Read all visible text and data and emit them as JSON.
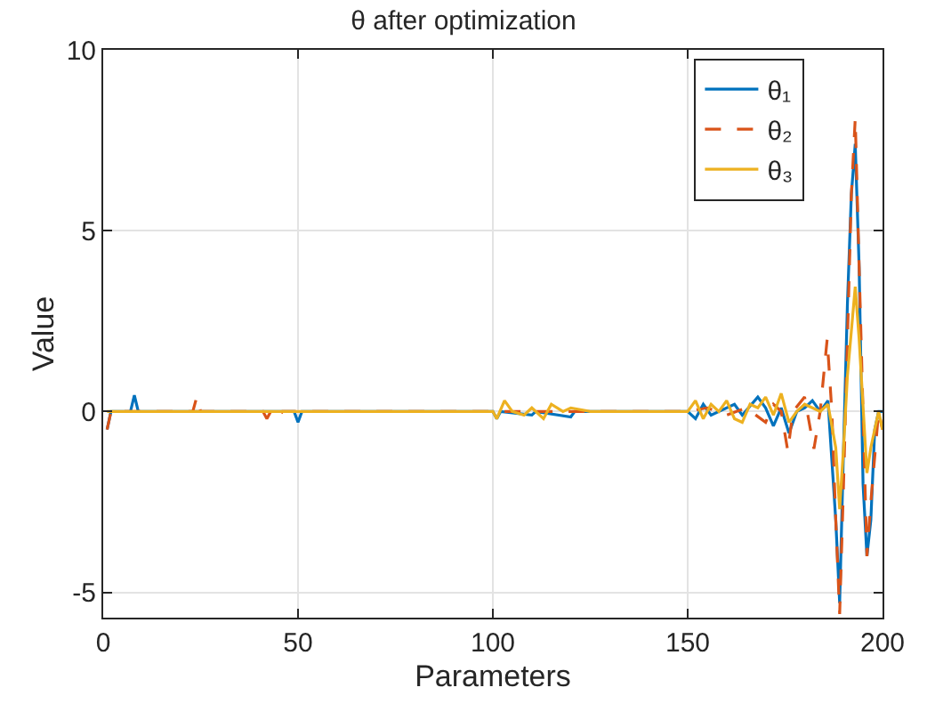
{
  "chart_data": {
    "type": "line",
    "title": "θ after optimization",
    "xlabel": "Parameters",
    "ylabel": "Value",
    "xlim": [
      0,
      200
    ],
    "xticks": [
      0,
      50,
      100,
      150,
      200
    ],
    "ylim": [
      -5.7,
      10
    ],
    "yticks": [
      -5,
      0,
      5,
      10
    ],
    "grid": true,
    "legend": "top right",
    "marker": "none",
    "series": [
      {
        "name": "θ₁",
        "color": "#0072bd",
        "line_style": "solid",
        "x": [
          1,
          2,
          7,
          8,
          9,
          49,
          50,
          51,
          100,
          101,
          102,
          110,
          111,
          120,
          121,
          150,
          152,
          154,
          156,
          158,
          162,
          164,
          168,
          170,
          172,
          174,
          176,
          178,
          180,
          182,
          184,
          186,
          188,
          189,
          190,
          191,
          192,
          193,
          194,
          195,
          196,
          197,
          198,
          199,
          200
        ],
        "values": [
          -0.5,
          0,
          0,
          0.45,
          0,
          0,
          -0.3,
          0,
          0,
          -0.2,
          0,
          -0.1,
          0,
          -0.15,
          0,
          0,
          -0.2,
          0.2,
          -0.1,
          0,
          0.2,
          -0.1,
          0.4,
          0.1,
          -0.4,
          0.1,
          -0.6,
          0,
          0.1,
          0.3,
          0,
          0.3,
          -3,
          -5.3,
          -1,
          3,
          6,
          7.4,
          4,
          -2,
          -4,
          -3,
          -0.5,
          0,
          0
        ]
      },
      {
        "name": "θ₂",
        "color": "#d95319",
        "line_style": "dashed",
        "x": [
          1,
          2,
          23,
          24,
          25,
          41,
          42,
          43,
          44,
          45,
          46,
          100,
          150,
          155,
          160,
          165,
          170,
          172,
          174,
          175.7,
          177,
          180,
          182.4,
          184,
          185.8,
          187,
          188,
          189,
          190,
          192,
          193,
          194,
          196,
          197,
          199,
          200
        ],
        "values": [
          -0.5,
          0,
          0,
          0.4,
          0,
          0,
          -0.2,
          0,
          0,
          -0.15,
          0,
          0,
          0,
          0.1,
          -0.1,
          0.1,
          -0.3,
          0.2,
          0,
          -1.1,
          0,
          0.4,
          -1.03,
          0,
          2,
          0,
          -3,
          -5.6,
          -2,
          6,
          8.1,
          4,
          -4,
          -2.5,
          0,
          -0.5
        ]
      },
      {
        "name": "θ₃",
        "color": "#edb120",
        "line_style": "solid",
        "x": [
          1,
          100,
          101,
          103,
          105,
          108,
          110,
          113,
          115,
          118,
          120,
          125,
          130,
          140,
          150,
          152,
          154,
          156,
          158,
          160,
          162,
          164,
          166,
          168,
          170,
          172,
          174,
          176,
          178,
          180,
          182,
          184,
          186,
          188,
          189,
          190,
          191,
          193,
          194,
          196,
          197,
          199,
          200
        ],
        "values": [
          0,
          0,
          -0.2,
          0.3,
          0,
          -0.1,
          0.1,
          -0.2,
          0.2,
          0,
          0.1,
          0,
          0,
          0,
          0,
          0.3,
          -0.2,
          0.2,
          0,
          0.3,
          -0.2,
          -0.3,
          0.2,
          0.1,
          0.4,
          -0.1,
          0.5,
          -0.3,
          0,
          0.2,
          0.1,
          0,
          0.2,
          -1,
          -2.7,
          -1,
          1,
          3.45,
          2,
          -1.7,
          -1,
          0,
          -0.5
        ]
      }
    ]
  }
}
